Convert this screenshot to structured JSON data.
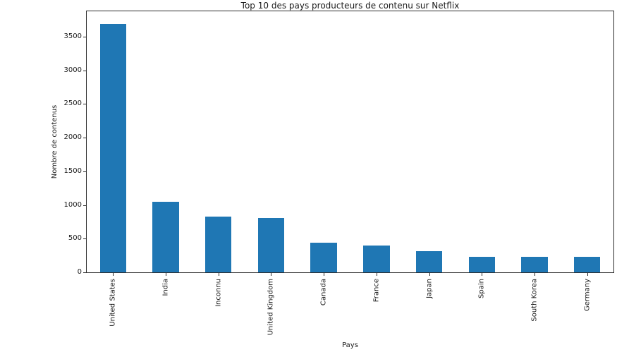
{
  "chart_data": {
    "type": "bar",
    "title": "Top 10 des pays producteurs de contenu sur Netflix",
    "xlabel": "Pays",
    "ylabel": "Nombre de contenus",
    "categories": [
      "United States",
      "India",
      "Inconnu",
      "United Kingdom",
      "Canada",
      "France",
      "Japan",
      "Spain",
      "South Korea",
      "Germany"
    ],
    "values": [
      3690,
      1046,
      831,
      806,
      445,
      393,
      318,
      232,
      231,
      226
    ],
    "yticks": [
      0,
      500,
      1000,
      1500,
      2000,
      2500,
      3000,
      3500
    ],
    "ylim": [
      0,
      3875
    ],
    "bar_color": "#1f77b4",
    "bar_width_fraction": 0.5,
    "grid": false,
    "legend": "none",
    "x_tick_rotation_deg": 90
  }
}
